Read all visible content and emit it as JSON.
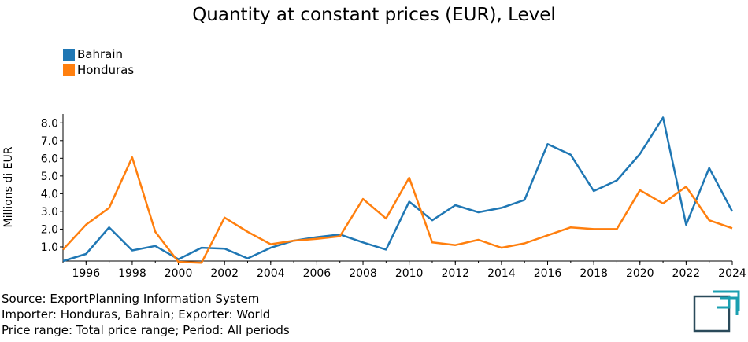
{
  "chart_data": {
    "type": "line",
    "title": "Quantity at constant prices (EUR), Level",
    "ylabel": "Millions di EUR",
    "xlabel": "",
    "xlim": [
      1995,
      2024
    ],
    "ylim": [
      0.2,
      8.5
    ],
    "yticks": [
      1.0,
      2.0,
      3.0,
      4.0,
      5.0,
      6.0,
      7.0,
      8.0
    ],
    "ytick_labels": [
      "1.0",
      "2.0",
      "3.0",
      "4.0",
      "5.0",
      "6.0",
      "7.0",
      "8.0"
    ],
    "xticks": [
      1996,
      1998,
      2000,
      2002,
      2004,
      2006,
      2008,
      2010,
      2012,
      2014,
      2016,
      2018,
      2020,
      2022,
      2024
    ],
    "xtick_labels": [
      "1996",
      "1998",
      "2000",
      "2002",
      "2004",
      "2006",
      "2008",
      "2010",
      "2012",
      "2014",
      "2016",
      "2018",
      "2020",
      "2022",
      "2024"
    ],
    "grid": false,
    "legend_position": "top-left",
    "x": [
      1995,
      1996,
      1997,
      1998,
      1999,
      2000,
      2001,
      2002,
      2003,
      2004,
      2005,
      2006,
      2007,
      2008,
      2009,
      2010,
      2011,
      2012,
      2013,
      2014,
      2015,
      2016,
      2017,
      2018,
      2019,
      2020,
      2021,
      2022,
      2023,
      2024
    ],
    "series": [
      {
        "name": "Bahrain",
        "color": "#1f77b4",
        "values": [
          0.2,
          0.6,
          2.1,
          0.8,
          1.05,
          0.3,
          0.95,
          0.9,
          0.35,
          0.95,
          1.35,
          1.55,
          1.7,
          1.25,
          0.85,
          3.55,
          2.5,
          3.35,
          2.95,
          3.2,
          3.65,
          6.8,
          6.2,
          4.15,
          4.75,
          6.25,
          8.3,
          2.25,
          5.45,
          3.0
        ]
      },
      {
        "name": "Honduras",
        "color": "#ff7f0e",
        "values": [
          0.85,
          2.25,
          3.2,
          6.05,
          1.85,
          0.15,
          0.1,
          2.65,
          1.85,
          1.15,
          1.35,
          1.45,
          1.6,
          3.7,
          2.6,
          4.9,
          1.25,
          1.1,
          1.4,
          0.95,
          1.2,
          1.65,
          2.1,
          2.0,
          2.0,
          4.2,
          3.45,
          4.4,
          2.5,
          2.05
        ]
      }
    ]
  },
  "footer": {
    "line1": "Source: ExportPlanning Information System",
    "line2": "Importer: Honduras, Bahrain; Exporter: World",
    "line3": "Price range: Total price range; Period: All periods"
  },
  "logo": {
    "icon": "exportplanning-logo-icon",
    "colors": [
      "#2a4a5a",
      "#1a9fb0"
    ]
  }
}
